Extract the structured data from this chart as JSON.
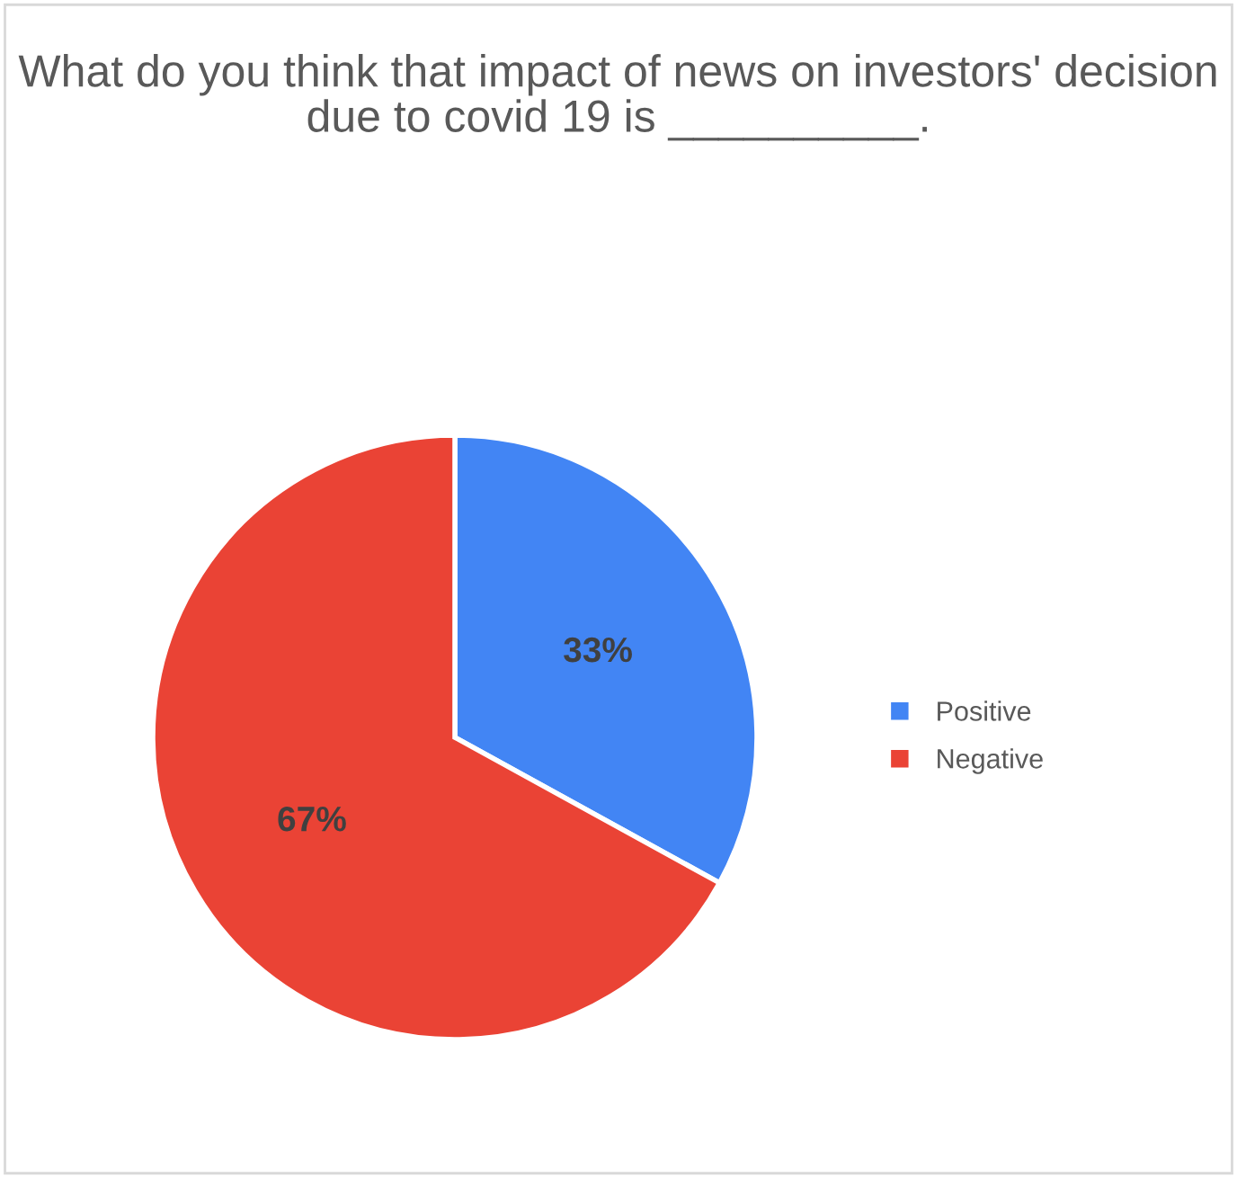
{
  "chart_data": {
    "type": "pie",
    "title": "What do you think that impact of news on investors' decision due to covid 19 is __________.",
    "categories": [
      "Positive",
      "Negative"
    ],
    "values": [
      33,
      67
    ],
    "colors": [
      "#4285f4",
      "#ea4335"
    ],
    "value_labels": [
      "33%",
      "67%"
    ],
    "legend": "right"
  }
}
